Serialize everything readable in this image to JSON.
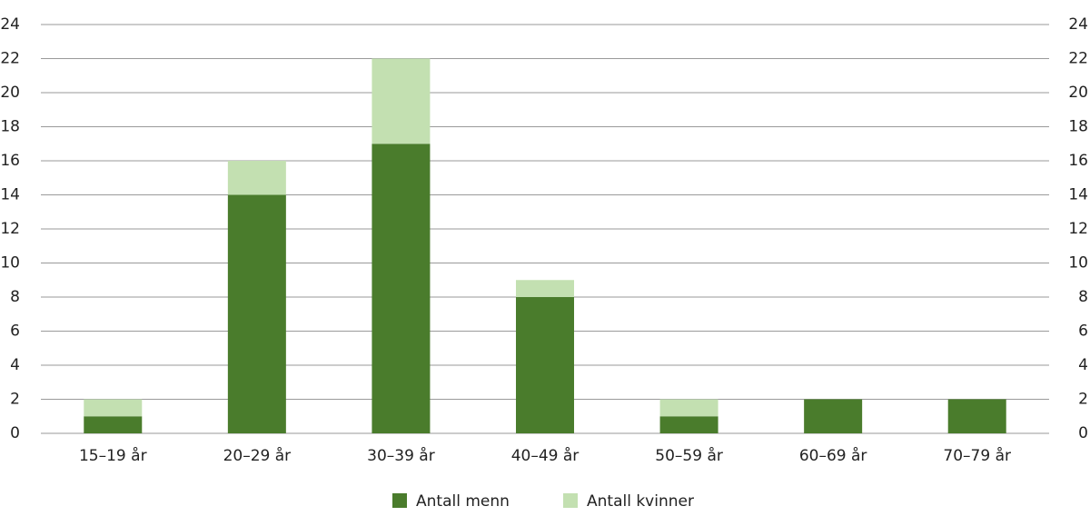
{
  "chart_data": {
    "type": "stacked-bar",
    "categories": [
      "15–19 år",
      "20–29 år",
      "30–39 år",
      "40–49 år",
      "50–59 år",
      "60–69 år",
      "70–79 år"
    ],
    "series": [
      {
        "name": "Antall menn",
        "color": "#4a7c2c",
        "values": [
          1,
          14,
          17,
          8,
          1,
          2,
          2
        ]
      },
      {
        "name": "Antall kvinner",
        "color": "#c3e0b1",
        "values": [
          1,
          2,
          5,
          1,
          1,
          0,
          0
        ]
      }
    ],
    "ylim": [
      0,
      24
    ],
    "yticks": [
      0,
      2,
      4,
      6,
      8,
      10,
      12,
      14,
      16,
      18,
      20,
      22,
      24
    ],
    "y2lim": [
      0,
      24
    ],
    "y2ticks": [
      0,
      2,
      4,
      6,
      8,
      10,
      12,
      14,
      16,
      18,
      20,
      22,
      24
    ],
    "grid": true,
    "legend": "bottom"
  }
}
